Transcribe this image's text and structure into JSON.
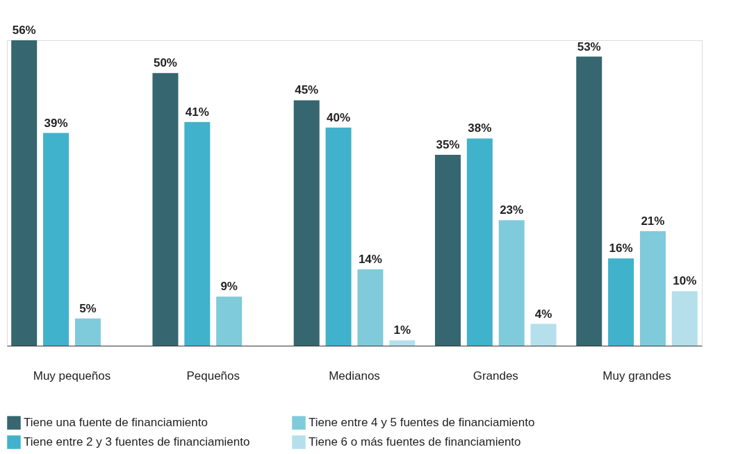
{
  "chart_data": {
    "type": "bar",
    "categories": [
      "Muy pequeños",
      "Pequeños",
      "Medianos",
      "Grandes",
      "Muy grandes"
    ],
    "series": [
      {
        "name": "Tiene una fuente de financiamiento",
        "color": "#36666f",
        "values": [
          56,
          50,
          45,
          35,
          53
        ],
        "value_labels": [
          "56%",
          "50%",
          "45%",
          "35%",
          "53%"
        ]
      },
      {
        "name": "Tiene entre 2 y 3 fuentes de financiamiento",
        "color": "#41b2cb",
        "values": [
          39,
          41,
          40,
          38,
          16
        ],
        "value_labels": [
          "39%",
          "41%",
          "40%",
          "38%",
          "16%"
        ]
      },
      {
        "name": "Tiene entre 4 y 5 fuentes de financiamiento",
        "color": "#7fcadb",
        "values": [
          5,
          9,
          14,
          23,
          21
        ],
        "value_labels": [
          "5%",
          "9%",
          "14%",
          "23%",
          "21%"
        ]
      },
      {
        "name": "Tiene 6 o más fuentes de financiamiento",
        "color": "#b5e0eb",
        "values": [
          null,
          null,
          1,
          4,
          10
        ],
        "value_labels": [
          null,
          null,
          "1%",
          "4%",
          "10%"
        ]
      }
    ],
    "legend": "bottom",
    "grid": false
  }
}
